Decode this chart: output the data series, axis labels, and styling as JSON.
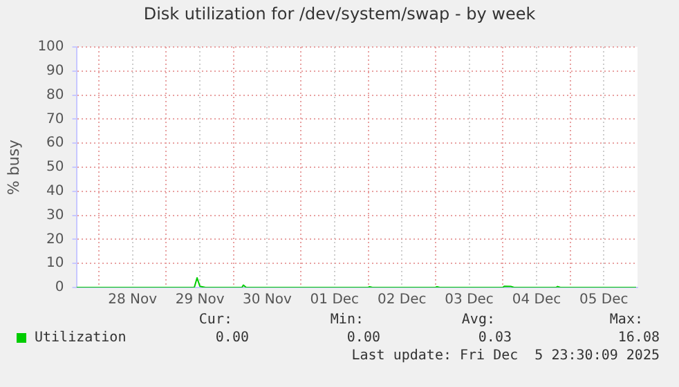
{
  "chart_data": {
    "type": "line",
    "title": "Disk utilization for /dev/system/swap - by week",
    "ylabel": "% busy",
    "xlim": [
      "2025-11-27T16:00",
      "2025-12-06T00:00"
    ],
    "xticks": [
      {
        "value": "2025-11-28T00:00",
        "label": null
      },
      {
        "value": "2025-11-28T12:00",
        "label": "28 Nov"
      },
      {
        "value": "2025-11-29T00:00",
        "label": null
      },
      {
        "value": "2025-11-29T12:00",
        "label": "29 Nov"
      },
      {
        "value": "2025-11-30T00:00",
        "label": null
      },
      {
        "value": "2025-11-30T12:00",
        "label": "30 Nov"
      },
      {
        "value": "2025-12-01T00:00",
        "label": null
      },
      {
        "value": "2025-12-01T12:00",
        "label": "01 Dec"
      },
      {
        "value": "2025-12-02T00:00",
        "label": null
      },
      {
        "value": "2025-12-02T12:00",
        "label": "02 Dec"
      },
      {
        "value": "2025-12-03T00:00",
        "label": null
      },
      {
        "value": "2025-12-03T12:00",
        "label": "03 Dec"
      },
      {
        "value": "2025-12-04T00:00",
        "label": null
      },
      {
        "value": "2025-12-04T12:00",
        "label": "04 Dec"
      },
      {
        "value": "2025-12-05T00:00",
        "label": null
      },
      {
        "value": "2025-12-05T12:00",
        "label": "05 Dec"
      }
    ],
    "ylim": [
      0,
      100
    ],
    "yticks": [
      0,
      10,
      20,
      30,
      40,
      50,
      60,
      70,
      80,
      90,
      100
    ],
    "grid": true,
    "legend": "bottom left",
    "marker": "none",
    "x": [
      "2025-11-27T16:00",
      "2025-11-29T10:00",
      "2025-11-29T11:00",
      "2025-11-29T12:00",
      "2025-11-29T14:00",
      "2025-11-30T03:00",
      "2025-11-30T03:30",
      "2025-11-30T04:30",
      "2025-12-02T00:00",
      "2025-12-02T00:30",
      "2025-12-02T01:30",
      "2025-12-03T00:00",
      "2025-12-03T00:30",
      "2025-12-03T01:30",
      "2025-12-04T00:00",
      "2025-12-04T00:30",
      "2025-12-04T03:00",
      "2025-12-04T04:00",
      "2025-12-04T19:00",
      "2025-12-04T19:30",
      "2025-12-04T20:30",
      "2025-12-05T23:30"
    ],
    "series": [
      {
        "name": "Utilization",
        "color": "#00cc00",
        "values": [
          0,
          0,
          4,
          0.5,
          0,
          0,
          1,
          0,
          0,
          0.3,
          0,
          0,
          0.3,
          0,
          0,
          0.5,
          0.4,
          0,
          0,
          0.4,
          0,
          0
        ]
      }
    ],
    "annotations": [
      "Cur:",
      "Min:",
      "Avg:",
      "Max:",
      "0.00",
      "0.00",
      "0.03",
      "16.08",
      "Last update: Fri Dec  5 23:30:09 2025"
    ]
  }
}
